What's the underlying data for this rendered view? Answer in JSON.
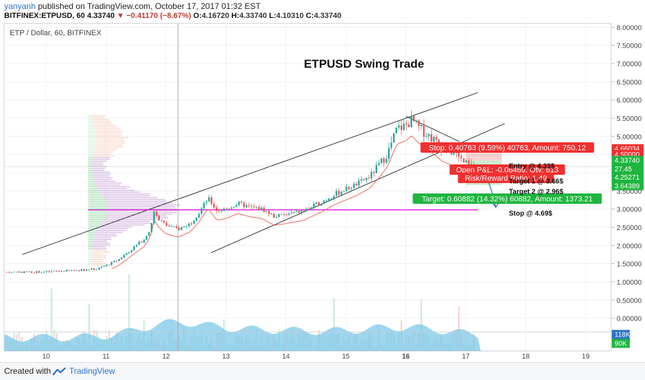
{
  "header": {
    "author": "yanyanh",
    "published_text": "published on TradingView.com, October 17, 2017 01:32 EST",
    "symbol_line": "BITFINEX:ETPUSD, 60",
    "last": "4.33740",
    "change": "−0.41170 (−8.67%)",
    "o_label": "O:",
    "o": "4.16720",
    "h_label": "H:",
    "h": "4.33740",
    "l_label": "L:",
    "l": "4.10310",
    "c_label": "C:",
    "c": "4.33740"
  },
  "chart_header": {
    "instrument": "ETP / Dollar, 60, BITFINEX"
  },
  "footer": {
    "created_with": "Created with",
    "brand": "TradingView"
  },
  "colors": {
    "up": "#26a69a",
    "down": "#ef5350",
    "stop": "#f12f2f",
    "target": "#1fb53f",
    "magenta": "#e21cdb",
    "blue_arrow": "#2a73c9",
    "volume_area": "#7ec8e8"
  },
  "chart_data": {
    "type": "candlestick",
    "title": "ETPUSD Swing Trade",
    "x_ticks": [
      "10",
      "11",
      "12",
      "13",
      "14",
      "15",
      "16",
      "17",
      "18",
      "19"
    ],
    "x_tick_days": [
      10,
      11,
      12,
      13,
      14,
      15,
      16,
      17,
      18,
      19
    ],
    "y_ticks": [
      "8.00000",
      "7.50000",
      "7.00000",
      "6.50000",
      "6.00000",
      "5.50000",
      "5.00000",
      "4.50000",
      "4.00000",
      "3.50000",
      "3.00000",
      "2.50000",
      "2.00000",
      "1.50000",
      "1.00000",
      "0.50000",
      "0.00000"
    ],
    "ylim": [
      -0.9,
      8.1
    ],
    "xlim_days": [
      9.3,
      19.4
    ],
    "price_path": [
      [
        9.3,
        1.27
      ],
      [
        10.0,
        1.27
      ],
      [
        10.6,
        1.33
      ],
      [
        10.85,
        1.35
      ],
      [
        11.0,
        1.45
      ],
      [
        11.2,
        1.6
      ],
      [
        11.35,
        1.8
      ],
      [
        11.5,
        2.0
      ],
      [
        11.65,
        2.2
      ],
      [
        11.75,
        2.5
      ],
      [
        11.8,
        2.95
      ],
      [
        11.9,
        2.7
      ],
      [
        12.0,
        2.55
      ],
      [
        12.2,
        2.45
      ],
      [
        12.4,
        2.6
      ],
      [
        12.55,
        2.9
      ],
      [
        12.7,
        3.3
      ],
      [
        12.85,
        2.95
      ],
      [
        13.0,
        3.0
      ],
      [
        13.2,
        3.15
      ],
      [
        13.4,
        3.05
      ],
      [
        13.6,
        3.0
      ],
      [
        13.8,
        2.8
      ],
      [
        14.0,
        2.85
      ],
      [
        14.3,
        2.95
      ],
      [
        14.6,
        3.2
      ],
      [
        14.8,
        3.4
      ],
      [
        15.0,
        3.55
      ],
      [
        15.2,
        3.7
      ],
      [
        15.4,
        3.9
      ],
      [
        15.55,
        4.2
      ],
      [
        15.7,
        4.55
      ],
      [
        15.85,
        5.2
      ],
      [
        16.0,
        5.3
      ],
      [
        16.1,
        5.45
      ],
      [
        16.2,
        5.25
      ],
      [
        16.4,
        5.0
      ],
      [
        16.6,
        4.7
      ],
      [
        16.8,
        4.55
      ],
      [
        16.95,
        4.3
      ],
      [
        17.05,
        4.2
      ],
      [
        17.15,
        4.1
      ]
    ],
    "series_lines": [
      {
        "name": "",
        "kind": "channel_upper",
        "points": [
          [
            9.6,
            1.75
          ],
          [
            17.2,
            6.2
          ]
        ]
      },
      {
        "name": "",
        "kind": "channel_lower",
        "points": [
          [
            12.75,
            1.8
          ],
          [
            17.65,
            5.35
          ]
        ]
      },
      {
        "name": "",
        "kind": "down_trendline",
        "points": [
          [
            16.0,
            5.55
          ],
          [
            16.9,
            4.85
          ]
        ]
      },
      {
        "name": "",
        "kind": "support",
        "points": [
          [
            10.7,
            2.98
          ],
          [
            17.2,
            2.98
          ]
        ]
      }
    ],
    "position_tool": {
      "entry": 4.33,
      "stop": 4.69,
      "target": 3.66,
      "x_start_days": 17.0,
      "x_end_days": 17.6,
      "stop_label": "Stop: 0.40763 (9.59%) 40763, Amount: 750.12",
      "pnl_label": "Open P&L: -0.08469, Qty: 613",
      "rr_label": "Risk/Reward Ratio: 1.49",
      "target_label": "Target: 0.60882 (14.32%) 60882, Amount: 1373.21"
    },
    "annotations": [
      {
        "text": "Entry @ 4.33$",
        "x_days": 17.65,
        "y": 4.2
      },
      {
        "text": "Target 1 @  3.66$",
        "x_days": 17.65,
        "y": 3.78
      },
      {
        "text": "Target 2 @ 2.96$",
        "x_days": 17.65,
        "y": 3.5
      },
      {
        "text": "Stop @ 4.69$",
        "x_days": 17.65,
        "y": 2.9
      }
    ],
    "price_labels": [
      {
        "text": "4.66034",
        "y": 4.66,
        "color": "#f12f2f"
      },
      {
        "text": "4.50000",
        "y": 4.5,
        "color": "#f12f2f"
      },
      {
        "text": "4.33740",
        "y": 4.34,
        "color": "#1fb53f"
      },
      {
        "text": "27.45",
        "y": 4.1,
        "color": "#1fb53f"
      },
      {
        "text": "4.25271",
        "y": 3.88,
        "color": "#1fb53f"
      },
      {
        "text": "3.64389",
        "y": 3.64,
        "color": "#1fb53f"
      }
    ],
    "volume_labels": [
      {
        "text": "118K",
        "color": "#2a73c9"
      },
      {
        "text": "90K",
        "color": "#1fb53f"
      }
    ]
  }
}
